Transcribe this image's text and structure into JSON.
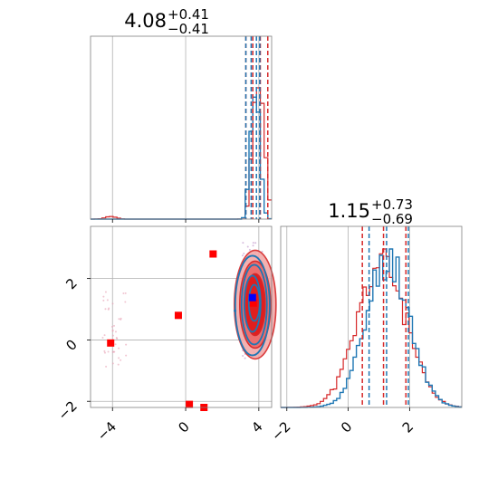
{
  "colors": {
    "red": "#d62728",
    "blue": "#1f77b4",
    "red_fill": "#e84a4a",
    "marker_red": "#ff0000",
    "marker_blue": "#0000ff"
  },
  "chart_data": [
    {
      "type": "histogram",
      "panel": "top-left",
      "title": {
        "main": "4.08",
        "sup": "+0.41",
        "sub": "−0.41"
      },
      "xlim": [
        -5.2,
        4.7
      ],
      "x_ticks": [
        -4,
        0,
        4
      ],
      "grid": true,
      "series": [
        {
          "color": "red",
          "vlines_dashed": [
            3.29,
            3.67,
            4.08,
            4.49
          ]
        },
        {
          "color": "blue",
          "vlines_dashed": [
            3.29,
            3.58,
            3.87,
            4.05
          ]
        }
      ]
    },
    {
      "type": "scatter",
      "panel": "bottom-left",
      "xlim": [
        -5.2,
        4.7
      ],
      "ylim": [
        -2.2,
        3.7
      ],
      "x_ticks": [
        -4,
        0,
        4
      ],
      "y_ticks": [
        -2,
        0,
        2
      ],
      "x_tick_labels": [
        "−4",
        "0",
        "4"
      ],
      "y_tick_labels": [
        "−2",
        "0",
        "2"
      ],
      "grid": true,
      "red_markers": [
        [
          -4.1,
          -0.1
        ],
        [
          -0.4,
          0.8
        ],
        [
          1.5,
          2.8
        ],
        [
          0.2,
          -2.1
        ],
        [
          1.0,
          -2.2
        ],
        [
          3.7,
          1.2
        ]
      ],
      "blue_marker": [
        3.65,
        1.38
      ],
      "contour_center": [
        3.8,
        1.15
      ]
    },
    {
      "type": "histogram",
      "panel": "bottom-right",
      "title": {
        "main": "1.15",
        "sup": "+0.73",
        "sub": "−0.69"
      },
      "xlim": [
        -2.2,
        3.7
      ],
      "x_ticks": [
        -2,
        0,
        2
      ],
      "x_tick_labels": [
        "−2",
        "0",
        "2"
      ],
      "grid": true,
      "series": [
        {
          "color": "red",
          "vlines_dashed": [
            0.46,
            1.15,
            1.88
          ]
        },
        {
          "color": "blue",
          "vlines_dashed": [
            0.68,
            1.25,
            1.96
          ]
        }
      ]
    }
  ]
}
